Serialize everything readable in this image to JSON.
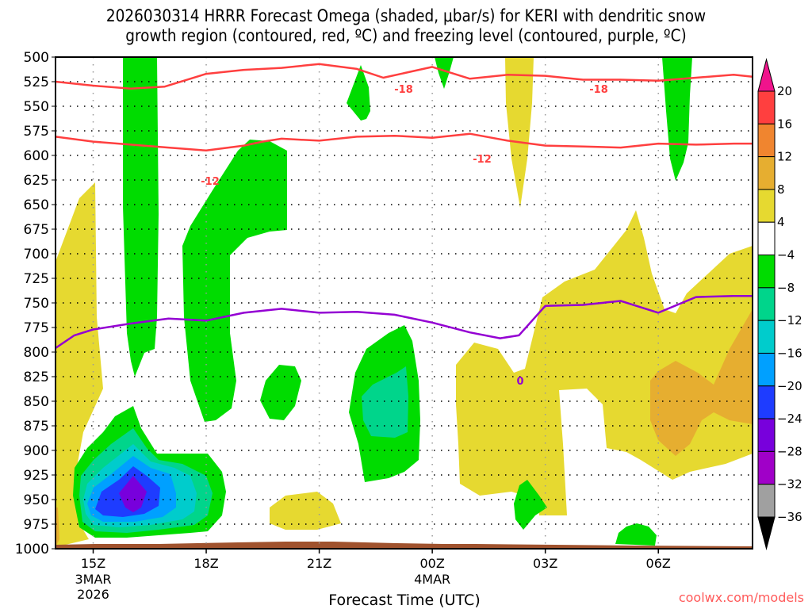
{
  "chart_data": {
    "type": "heatmap",
    "title_line1": "2026030314 HRRR Forecast Omega (shaded, μbar/s) for KERI with dendritic snow",
    "title_line2": "growth region (contoured, red, ºC) and freezing level (contoured, purple, ºC)",
    "xlabel": "Forecast Time (UTC)",
    "ylabel": "Pressure (hPa)",
    "credit": "coolwx.com/models",
    "x_hours_range": [
      14.0,
      32.5
    ],
    "y_range": [
      500,
      1000
    ],
    "y_ticks": [
      500,
      525,
      550,
      575,
      600,
      625,
      650,
      675,
      700,
      725,
      750,
      775,
      800,
      825,
      850,
      875,
      900,
      925,
      950,
      975,
      1000
    ],
    "x_ticks": [
      {
        "hour": 15,
        "label": "15Z",
        "sub": [
          "3MAR",
          "2026"
        ]
      },
      {
        "hour": 18,
        "label": "18Z",
        "sub": []
      },
      {
        "hour": 21,
        "label": "21Z",
        "sub": []
      },
      {
        "hour": 24,
        "label": "00Z",
        "sub": [
          "4MAR"
        ]
      },
      {
        "hour": 27,
        "label": "03Z",
        "sub": []
      },
      {
        "hour": 30,
        "label": "06Z",
        "sub": []
      }
    ],
    "grid": true,
    "colorbar": {
      "levels": [
        "20",
        "16",
        "12",
        "8",
        "4",
        "-4",
        "-8",
        "-12",
        "-16",
        "-20",
        "-24",
        "-28",
        "-32",
        "-36"
      ],
      "colors": [
        "#ff3f3f",
        "#f0852f",
        "#e6ae30",
        "#e6d930",
        "#ffffff",
        "#00dc00",
        "#00d58b",
        "#00cccc",
        "#00a0ff",
        "#1e3cff",
        "#7800dc",
        "#a000c8",
        "#a0a0a0"
      ],
      "over_color": "#f0148c",
      "under_color": "#000000",
      "placement": "right"
    },
    "contours": [
      {
        "name": "-18 °C isotherm",
        "color": "#ff3f3f",
        "label": "-18",
        "points": [
          [
            14.0,
            525
          ],
          [
            15,
            529
          ],
          [
            16,
            532
          ],
          [
            16.9,
            530
          ],
          [
            18,
            517
          ],
          [
            19,
            513
          ],
          [
            20,
            511
          ],
          [
            21,
            507
          ],
          [
            22,
            512
          ],
          [
            22.7,
            521
          ],
          [
            24,
            510
          ],
          [
            25,
            522
          ],
          [
            26,
            518
          ],
          [
            27,
            519
          ],
          [
            28,
            523
          ],
          [
            29,
            523
          ],
          [
            30,
            524
          ],
          [
            31,
            521
          ],
          [
            32,
            518
          ],
          [
            32.5,
            520
          ]
        ]
      },
      {
        "name": "-12 °C isotherm",
        "color": "#ff3f3f",
        "label": "-12",
        "points": [
          [
            14.0,
            581
          ],
          [
            15,
            586
          ],
          [
            16,
            589
          ],
          [
            17,
            592
          ],
          [
            18,
            595
          ],
          [
            19,
            590
          ],
          [
            19.5,
            586
          ],
          [
            20,
            583
          ],
          [
            21,
            585
          ],
          [
            22,
            581
          ],
          [
            23,
            580
          ],
          [
            24,
            582
          ],
          [
            25,
            578
          ],
          [
            26,
            585
          ],
          [
            27,
            590
          ],
          [
            28,
            591
          ],
          [
            29,
            592
          ],
          [
            30,
            588
          ],
          [
            31,
            589
          ],
          [
            32,
            588
          ],
          [
            32.5,
            588
          ]
        ]
      },
      {
        "name": "freezing level 0 °C",
        "color": "#9400d3",
        "label": "0",
        "points": [
          [
            14.0,
            796
          ],
          [
            14.5,
            783
          ],
          [
            15,
            777
          ],
          [
            16,
            771
          ],
          [
            17,
            766
          ],
          [
            18,
            768
          ],
          [
            19,
            760
          ],
          [
            20,
            756
          ],
          [
            21,
            760
          ],
          [
            22,
            759
          ],
          [
            23,
            762
          ],
          [
            24,
            770
          ],
          [
            25,
            780
          ],
          [
            25.8,
            786
          ],
          [
            26.3,
            783
          ],
          [
            27,
            753
          ],
          [
            28,
            752
          ],
          [
            29,
            748
          ],
          [
            30,
            760
          ],
          [
            31,
            744
          ],
          [
            32,
            743
          ],
          [
            32.5,
            743
          ]
        ]
      }
    ],
    "shaded_regions": [
      {
        "name": "upward motion -4 to -8 (column near 15-16Z)",
        "color": "#00dc00",
        "value_range": [
          -8,
          -4
        ],
        "approx_center": [
          15.9,
          640
        ]
      },
      {
        "name": "upward motion -4 to -8 (plume near 17-18Z)",
        "color": "#00dc00",
        "value_range": [
          -8,
          -4
        ],
        "approx_center": [
          17.8,
          690
        ]
      },
      {
        "name": "strong upward motion core",
        "color": "#7800dc",
        "value_range": [
          -28,
          -24
        ],
        "approx_center": [
          16.0,
          925
        ]
      },
      {
        "name": "upward motion near 22-23Z",
        "color": "#00d58b",
        "value_range": [
          -12,
          -8
        ],
        "approx_center": [
          22.8,
          815
        ]
      },
      {
        "name": "subsidence region 03-08Z",
        "color": "#e6ae30",
        "value_range": [
          8,
          12
        ],
        "approx_center": [
          30.5,
          815
        ]
      },
      {
        "name": "surface / below ground",
        "color": "#a0522d",
        "approx_center": [
          23,
          998
        ]
      }
    ]
  }
}
